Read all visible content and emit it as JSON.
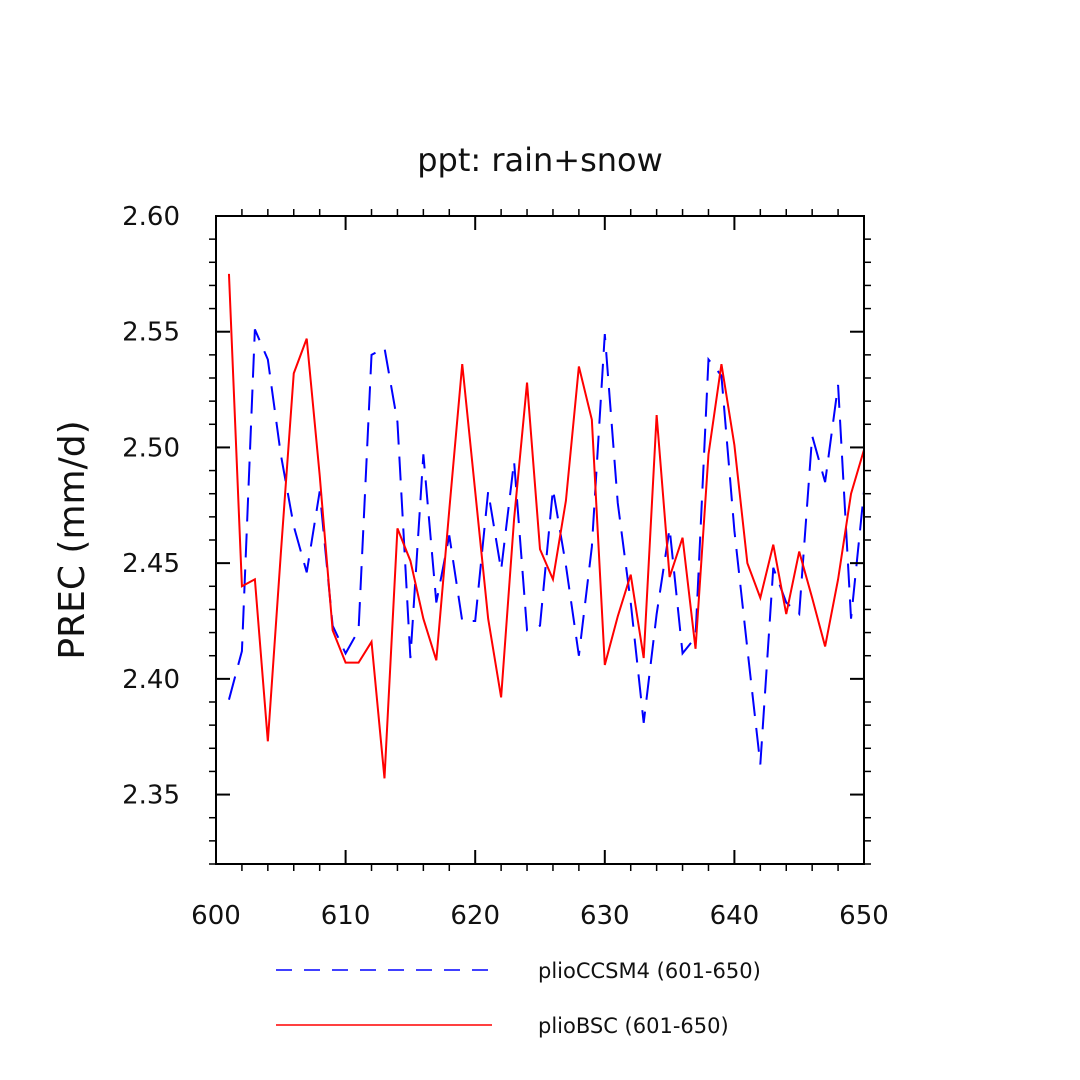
{
  "chart_data": {
    "type": "line",
    "title": "ppt: rain+snow",
    "xlabel": "",
    "ylabel": "PREC  (mm/d)",
    "xlim": [
      600,
      650
    ],
    "ylim": [
      2.32,
      2.6
    ],
    "x_ticks": [
      600,
      610,
      620,
      630,
      640,
      650
    ],
    "x_tick_labels": [
      "600",
      "610",
      "620",
      "630",
      "640",
      "650"
    ],
    "y_ticks": [
      2.35,
      2.4,
      2.45,
      2.5,
      2.55,
      2.6
    ],
    "y_tick_labels": [
      "2.35",
      "2.40",
      "2.45",
      "2.50",
      "2.55",
      "2.60"
    ],
    "grid": false,
    "legend_position": "bottom",
    "x": [
      601,
      602,
      603,
      604,
      605,
      606,
      607,
      608,
      609,
      610,
      611,
      612,
      613,
      614,
      615,
      616,
      617,
      618,
      619,
      620,
      621,
      622,
      623,
      624,
      625,
      626,
      627,
      628,
      629,
      630,
      631,
      632,
      633,
      634,
      635,
      636,
      637,
      638,
      639,
      640,
      641,
      642,
      643,
      644,
      645,
      646,
      647,
      648,
      649,
      650
    ],
    "series": [
      {
        "name": "plioCCSM4 (601-650)",
        "color": "#0000ff",
        "style": "dashed",
        "values": [
          2.391,
          2.412,
          2.551,
          2.538,
          2.497,
          2.466,
          2.446,
          2.481,
          2.423,
          2.411,
          2.421,
          2.54,
          2.543,
          2.511,
          2.409,
          2.497,
          2.433,
          2.462,
          2.425,
          2.425,
          2.481,
          2.447,
          2.494,
          2.421,
          2.423,
          2.482,
          2.449,
          2.41,
          2.457,
          2.549,
          2.476,
          2.433,
          2.381,
          2.428,
          2.465,
          2.411,
          2.418,
          2.538,
          2.531,
          2.464,
          2.413,
          2.363,
          2.448,
          2.433,
          2.428,
          2.505,
          2.485,
          2.527,
          2.426,
          2.481
        ]
      },
      {
        "name": "plioBSC (601-650)",
        "color": "#ff0000",
        "style": "solid",
        "values": [
          2.575,
          2.44,
          2.443,
          2.373,
          2.454,
          2.532,
          2.547,
          2.488,
          2.421,
          2.407,
          2.407,
          2.416,
          2.357,
          2.465,
          2.451,
          2.426,
          2.408,
          2.473,
          2.536,
          2.481,
          2.426,
          2.392,
          2.469,
          2.528,
          2.456,
          2.443,
          2.477,
          2.535,
          2.512,
          2.406,
          2.427,
          2.445,
          2.409,
          2.514,
          2.444,
          2.461,
          2.413,
          2.497,
          2.536,
          2.501,
          2.45,
          2.435,
          2.458,
          2.428,
          2.455,
          2.435,
          2.414,
          2.443,
          2.48,
          2.499
        ]
      }
    ]
  }
}
